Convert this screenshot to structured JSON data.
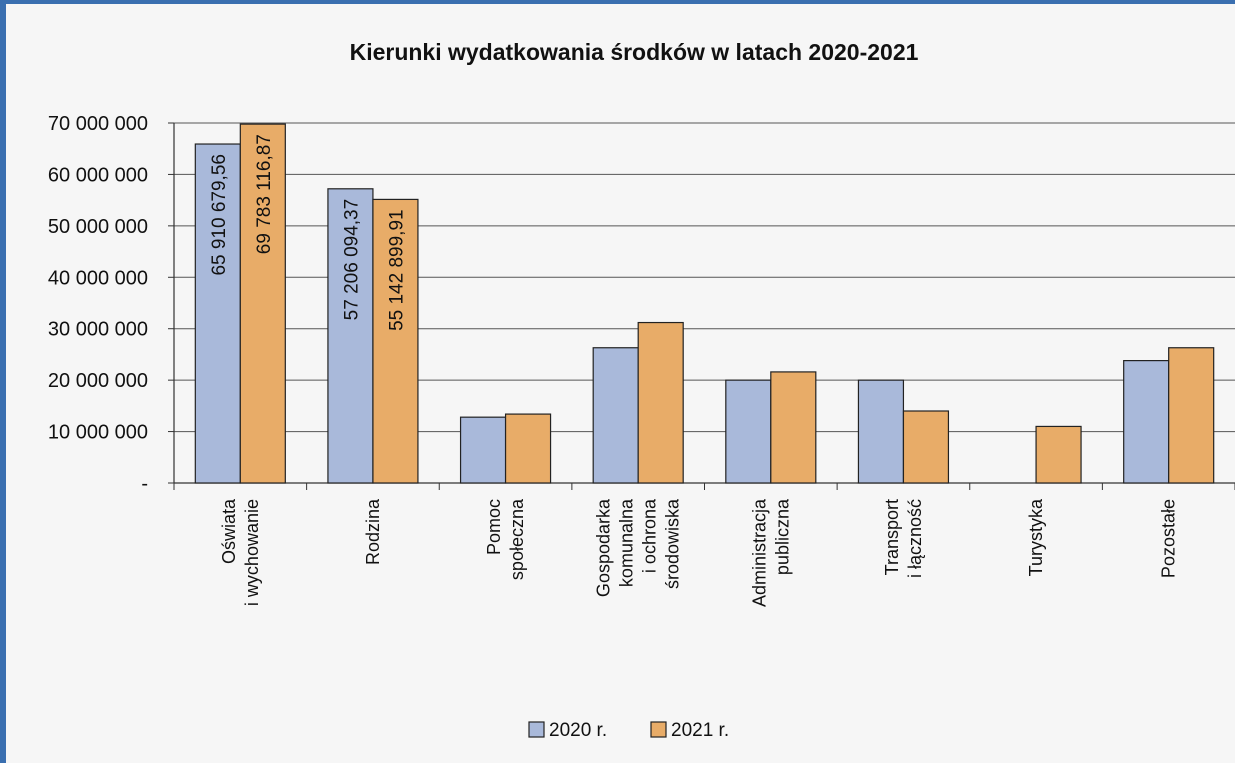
{
  "chart_data": {
    "type": "bar",
    "title": "Kierunki wydatkowania środków w latach 2020-2021",
    "categories": [
      [
        "Oświata",
        "i wychowanie"
      ],
      [
        "Rodzina"
      ],
      [
        "Pomoc",
        "społeczna"
      ],
      [
        "Gospodarka",
        "komunalna",
        "i ochrona",
        "środowiska"
      ],
      [
        "Administracja",
        "publiczna"
      ],
      [
        "Transport",
        "i łączność"
      ],
      [
        "Turystyka"
      ],
      [
        "Pozostałe"
      ]
    ],
    "series": [
      {
        "name": "2020 r.",
        "color": "#a9b9da",
        "values": [
          65910679.56,
          57206094.37,
          12800000,
          26300000,
          20000000,
          20000000,
          0,
          23800000
        ],
        "labels": [
          "65 910 679,56",
          "57 206 094,37",
          "",
          "",
          "",
          "",
          "",
          ""
        ]
      },
      {
        "name": "2021 r.",
        "color": "#e8ac68",
        "values": [
          69783116.87,
          55142899.91,
          13400000,
          31200000,
          21600000,
          14000000,
          11000000,
          26300000
        ],
        "labels": [
          "69 783 116,87",
          "55 142 899,91",
          "",
          "",
          "",
          "",
          "",
          ""
        ]
      }
    ],
    "ylim": [
      0,
      70000000
    ],
    "yticks": [
      {
        "value": 0,
        "label": "-"
      },
      {
        "value": 10000000,
        "label": "10 000 000"
      },
      {
        "value": 20000000,
        "label": "20 000 000"
      },
      {
        "value": 30000000,
        "label": "30 000 000"
      },
      {
        "value": 40000000,
        "label": "40 000 000"
      },
      {
        "value": 50000000,
        "label": "50 000 000"
      },
      {
        "value": 60000000,
        "label": "60 000 000"
      },
      {
        "value": 70000000,
        "label": "70 000 000"
      }
    ],
    "grid": true,
    "legend_position": "bottom"
  }
}
